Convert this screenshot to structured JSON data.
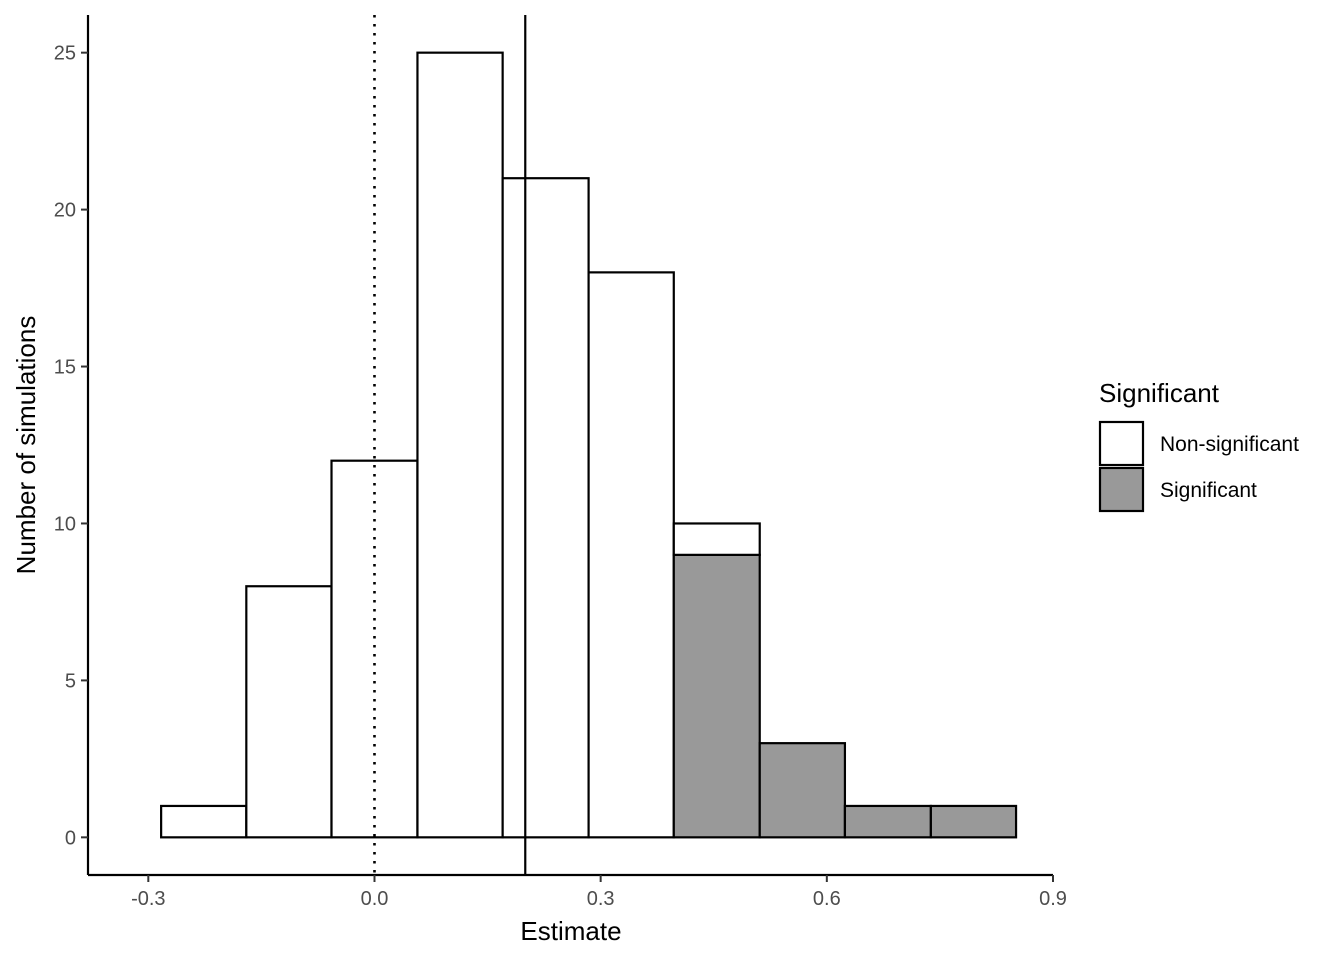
{
  "chart_data": {
    "type": "bar",
    "subtype": "stacked-histogram",
    "xlabel": "Estimate",
    "ylabel": "Number of simulations",
    "xlim": [
      -0.38,
      0.9
    ],
    "ylim": [
      -1.2,
      26.2
    ],
    "x_ticks": [
      -0.3,
      0.0,
      0.3,
      0.6,
      0.9
    ],
    "x_tick_labels": [
      "-0.3",
      "0.0",
      "0.3",
      "0.6",
      "0.9"
    ],
    "y_ticks": [
      0,
      5,
      10,
      15,
      20,
      25
    ],
    "y_tick_labels": [
      "0",
      "5",
      "10",
      "15",
      "20",
      "25"
    ],
    "bins": [
      {
        "x0": -0.283,
        "x1": -0.17,
        "nonsignificant": 1,
        "significant": 0
      },
      {
        "x0": -0.17,
        "x1": -0.057,
        "nonsignificant": 8,
        "significant": 0
      },
      {
        "x0": -0.057,
        "x1": 0.057,
        "nonsignificant": 12,
        "significant": 0
      },
      {
        "x0": 0.057,
        "x1": 0.17,
        "nonsignificant": 25,
        "significant": 0
      },
      {
        "x0": 0.17,
        "x1": 0.284,
        "nonsignificant": 21,
        "significant": 0
      },
      {
        "x0": 0.284,
        "x1": 0.397,
        "nonsignificant": 18,
        "significant": 0
      },
      {
        "x0": 0.397,
        "x1": 0.511,
        "nonsignificant": 1,
        "significant": 9
      },
      {
        "x0": 0.511,
        "x1": 0.624,
        "nonsignificant": 0,
        "significant": 3
      },
      {
        "x0": 0.624,
        "x1": 0.738,
        "nonsignificant": 0,
        "significant": 1
      },
      {
        "x0": 0.738,
        "x1": 0.851,
        "nonsignificant": 0,
        "significant": 1
      }
    ],
    "series": [
      {
        "name": "Non-significant",
        "color": "#ffffff"
      },
      {
        "name": "Significant",
        "color": "#999999"
      }
    ],
    "reference_lines": [
      {
        "x": 0.0,
        "style": "dotted"
      },
      {
        "x": 0.2,
        "style": "solid"
      }
    ],
    "legend": {
      "title": "Significant",
      "position": "right"
    },
    "grid": false
  }
}
